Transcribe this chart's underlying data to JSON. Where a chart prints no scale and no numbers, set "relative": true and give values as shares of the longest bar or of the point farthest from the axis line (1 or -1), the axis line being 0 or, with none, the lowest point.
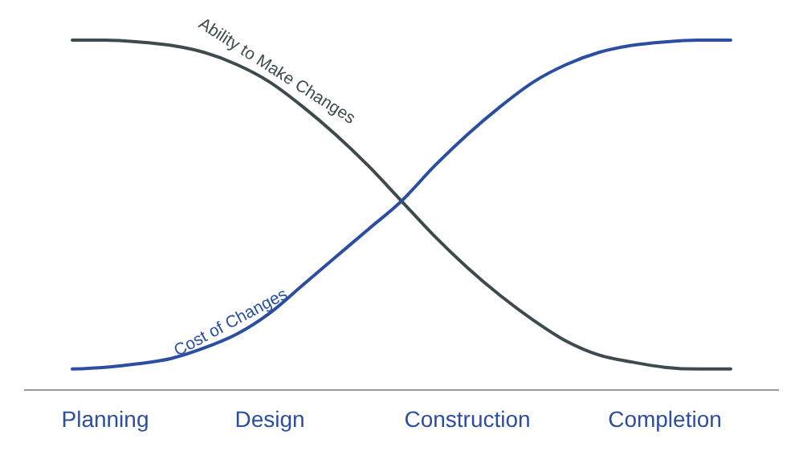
{
  "chart_data": {
    "type": "line",
    "relative": true,
    "categories": [
      null,
      "Planning",
      null,
      null,
      null,
      null,
      "Design",
      null,
      null,
      null,
      null,
      null,
      "Construction",
      null,
      null,
      null,
      null,
      null,
      "Completion",
      null,
      null
    ],
    "series": [
      {
        "name": "Ability to Make Changes",
        "color": "#3d4a4e",
        "values": [
          1.0,
          1.0,
          0.995,
          0.985,
          0.965,
          0.93,
          0.88,
          0.81,
          0.73,
          0.64,
          0.54,
          0.44,
          0.35,
          0.27,
          0.2,
          0.14,
          0.1,
          0.08,
          0.065,
          0.06,
          0.06
        ]
      },
      {
        "name": "Cost of Changes",
        "color": "#2b4ea2",
        "values": [
          0.06,
          0.065,
          0.075,
          0.09,
          0.12,
          0.16,
          0.22,
          0.3,
          0.38,
          0.46,
          0.54,
          0.64,
          0.73,
          0.81,
          0.88,
          0.93,
          0.965,
          0.985,
          0.995,
          1.0,
          1.0
        ]
      }
    ]
  }
}
